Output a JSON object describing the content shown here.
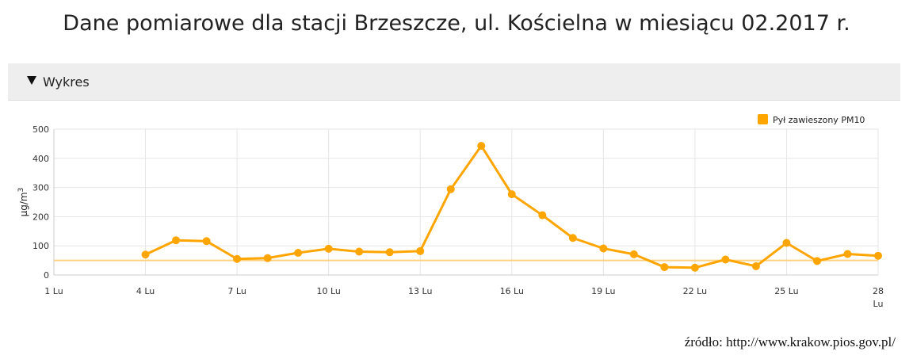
{
  "title": "Dane pomiarowe dla stacji Brzeszcze, ul. Kościelna w miesiącu 02.2017 r.",
  "panel": {
    "header_label": "Wykres"
  },
  "source": "źródło: http://www.krakow.pios.gov.pl/",
  "colors": {
    "series": "#FFA500",
    "threshold": "#FFD180",
    "grid": "#e6e6e6",
    "axis_text": "#333333"
  },
  "chart_data": {
    "type": "line",
    "ylabel": "µg/m3",
    "ylim": [
      0,
      500
    ],
    "yticks": [
      0,
      100,
      200,
      300,
      400,
      500
    ],
    "xlim": [
      1,
      28
    ],
    "xticks": [
      1,
      4,
      7,
      10,
      13,
      16,
      19,
      22,
      25,
      28
    ],
    "xtick_suffix": "Lu",
    "grid": true,
    "legend_position": "top-right",
    "threshold": 50,
    "series": [
      {
        "name": "Pył zawieszony PM10",
        "x": [
          4,
          5,
          6,
          7,
          8,
          9,
          10,
          11,
          12,
          13,
          14,
          15,
          16,
          17,
          18,
          19,
          20,
          21,
          22,
          23,
          24,
          25,
          26,
          27,
          28
        ],
        "y": [
          70,
          119,
          116,
          55,
          58,
          76,
          90,
          80,
          78,
          82,
          294,
          443,
          277,
          205,
          127,
          91,
          71,
          27,
          25,
          53,
          30,
          110,
          48,
          72,
          66
        ]
      }
    ]
  }
}
